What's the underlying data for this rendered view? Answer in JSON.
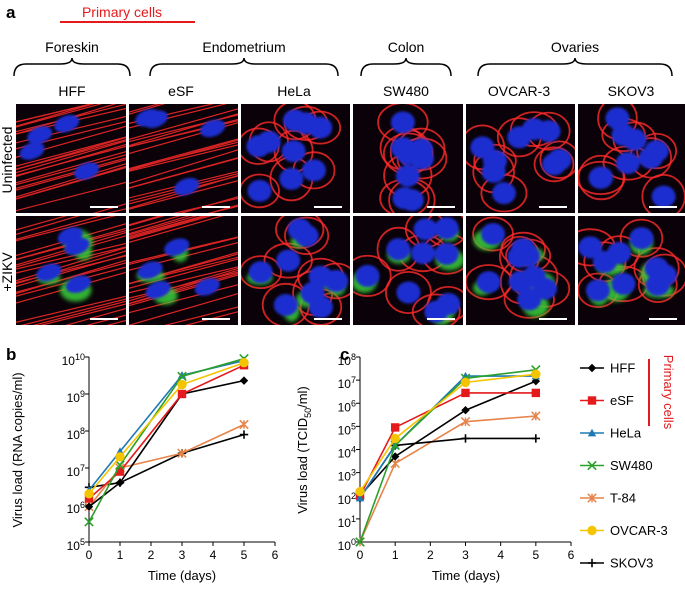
{
  "panels": {
    "a": "a",
    "b": "b",
    "c": "c"
  },
  "header": {
    "primary_cells": "Primary cells",
    "tissues": [
      "Foreskin",
      "Endometrium",
      "Colon",
      "Ovaries"
    ],
    "cell_lines": [
      "HFF",
      "eSF",
      "HeLa",
      "SW480",
      "OVCAR-3",
      "SKOV3"
    ]
  },
  "rows": [
    "Uninfected",
    "+ZIKV"
  ],
  "colors": {
    "primary_red": "#e41a1c",
    "actin_red": "#ff2a2a",
    "nuclei_blue": "#1f2fd0",
    "virus_green": "#3ad13a"
  },
  "legend": {
    "primary_cells_label": "Primary cells",
    "entries": [
      {
        "name": "HFF",
        "color": "#000000",
        "marker": "diamond"
      },
      {
        "name": "eSF",
        "color": "#e41a1c",
        "marker": "square"
      },
      {
        "name": "HeLa",
        "color": "#1f78b4",
        "marker": "triangle"
      },
      {
        "name": "SW480",
        "color": "#2ca02c",
        "marker": "x"
      },
      {
        "name": "T-84",
        "color": "#e6844a",
        "marker": "asterisk"
      },
      {
        "name": "OVCAR-3",
        "color": "#f5c400",
        "marker": "circle"
      },
      {
        "name": "SKOV3",
        "color": "#000000",
        "marker": "plus"
      }
    ]
  },
  "chart_data": [
    {
      "type": "line",
      "panel": "b",
      "title": "",
      "xlabel": "Time (days)",
      "ylabel": "Virus load (RNA copies/ml)",
      "xlim": [
        0,
        6
      ],
      "ylim_log10": [
        5,
        10
      ],
      "x_ticks": [
        "0",
        "1",
        "2",
        "3",
        "4",
        "5",
        "6"
      ],
      "y_ticks": [
        "10^5",
        "10^6",
        "10^7",
        "10^8",
        "10^9",
        "10^10"
      ],
      "x": [
        0,
        1,
        3,
        5
      ],
      "series": [
        {
          "name": "SKOV3",
          "values": [
            3000000,
            4000000,
            25000000,
            80000000
          ]
        },
        {
          "name": "T-84",
          "values": [
            900000,
            10000000,
            25000000,
            150000000
          ]
        },
        {
          "name": "HFF",
          "values": [
            900000,
            4000000,
            1000000000,
            2300000000
          ]
        },
        {
          "name": "eSF",
          "values": [
            1500000,
            8000000,
            1000000000,
            6000000000
          ]
        },
        {
          "name": "HeLa",
          "values": [
            2500000,
            28000000,
            3200000000,
            8000000000
          ]
        },
        {
          "name": "SW480",
          "values": [
            350000,
            12000000,
            3000000000,
            9000000000
          ]
        },
        {
          "name": "OVCAR-3",
          "values": [
            2000000,
            20000000,
            1800000000,
            7000000000
          ]
        }
      ]
    },
    {
      "type": "line",
      "panel": "c",
      "title": "",
      "xlabel": "Time (days)",
      "ylabel": "Virus load (TCID50/ml)",
      "xlim": [
        0,
        6
      ],
      "ylim_log10": [
        0,
        8
      ],
      "x_ticks": [
        "0",
        "1",
        "2",
        "3",
        "4",
        "5",
        "6"
      ],
      "y_ticks": [
        "10^0",
        "10^1",
        "10^2",
        "10^3",
        "10^4",
        "10^5",
        "10^6",
        "10^7",
        "10^8"
      ],
      "x": [
        0,
        1,
        3,
        5
      ],
      "series": [
        {
          "name": "T-84",
          "values": [
            1,
            2500,
            160000,
            280000
          ]
        },
        {
          "name": "SKOV3",
          "values": [
            80,
            15000,
            30000,
            30000
          ]
        },
        {
          "name": "HFF",
          "values": [
            100,
            5000,
            500000,
            9000000
          ]
        },
        {
          "name": "eSF",
          "values": [
            100,
            90000,
            2800000,
            2800000
          ]
        },
        {
          "name": "HeLa",
          "values": [
            80,
            15000,
            15000000,
            15000000
          ]
        },
        {
          "name": "SW480",
          "values": [
            1,
            15000,
            12000000,
            28000000
          ]
        },
        {
          "name": "OVCAR-3",
          "values": [
            150,
            30000,
            8000000,
            18000000
          ]
        }
      ]
    }
  ]
}
